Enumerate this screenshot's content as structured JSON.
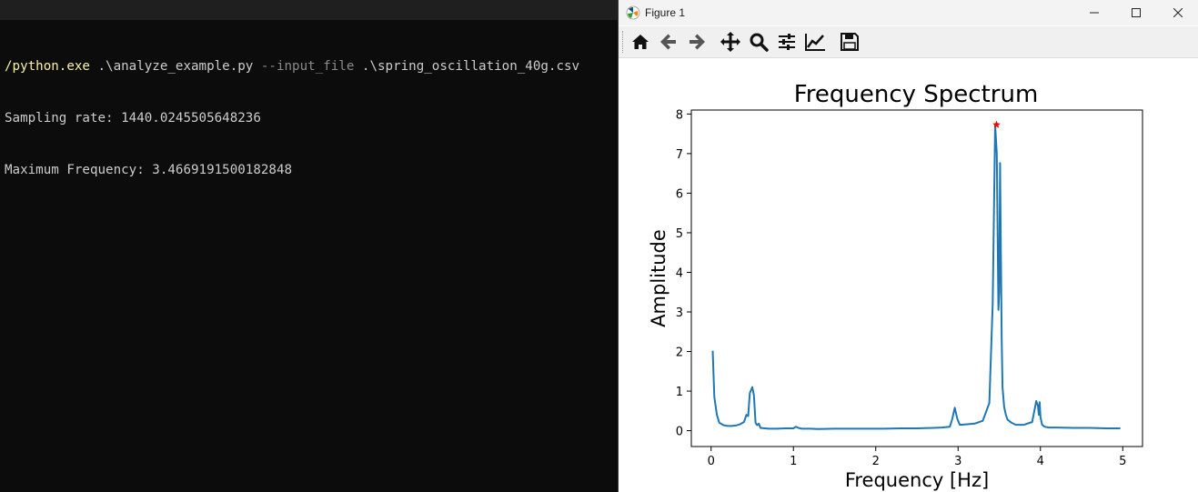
{
  "terminal": {
    "command_exe": "/python.exe",
    "command_script": " .\\analyze_example.py ",
    "command_flag": "--input_file",
    "command_arg": " .\\spring_oscillation_40g.csv",
    "line2": "Sampling rate: 1440.0245505648236",
    "line3": "Maximum Frequency: 3.4669191500182848"
  },
  "window": {
    "title": "Figure 1",
    "icons": [
      "matplotlib-icon",
      "minimize-icon",
      "maximize-icon",
      "close-icon"
    ]
  },
  "toolbar": {
    "icons": [
      "home-icon",
      "back-arrow-icon",
      "forward-arrow-icon",
      "pan-icon",
      "zoom-icon",
      "configure-subplots-icon",
      "edit-axis-icon",
      "save-icon"
    ]
  },
  "chart_data": {
    "type": "line",
    "title": "Frequency Spectrum",
    "xlabel": "Frequency [Hz]",
    "ylabel": "Amplitude",
    "xlim": [
      -0.24,
      5.24
    ],
    "ylim": [
      -0.4,
      8.1
    ],
    "xticks": [
      0,
      1,
      2,
      3,
      4,
      5
    ],
    "yticks": [
      0,
      1,
      2,
      3,
      4,
      5,
      6,
      7,
      8
    ],
    "grid": false,
    "line_color": "#1f77b4",
    "marker_color": "#ff0000",
    "peak": {
      "x": 3.4669191500182848,
      "y": 7.73
    },
    "series": [
      {
        "x": [
          0.02,
          0.04,
          0.07,
          0.1,
          0.15,
          0.2,
          0.25,
          0.3,
          0.35,
          0.4,
          0.43,
          0.45,
          0.47,
          0.5,
          0.52,
          0.54,
          0.56,
          0.58,
          0.6,
          0.65,
          0.7,
          0.8,
          0.9,
          1.0,
          1.03,
          1.06,
          1.1,
          1.2,
          1.3,
          1.5,
          1.7,
          1.9,
          2.1,
          2.3,
          2.5,
          2.7,
          2.8,
          2.9,
          2.93,
          2.96,
          2.99,
          3.02,
          3.1,
          3.2,
          3.3,
          3.38,
          3.42,
          3.45,
          3.47,
          3.49,
          3.5,
          3.51,
          3.52,
          3.53,
          3.54,
          3.56,
          3.58,
          3.6,
          3.65,
          3.7,
          3.8,
          3.9,
          3.95,
          3.97,
          3.98,
          3.99,
          4.0,
          4.02,
          4.05,
          4.1,
          4.2,
          4.4,
          4.6,
          4.8,
          4.97
        ],
        "y": [
          2.02,
          0.85,
          0.4,
          0.2,
          0.14,
          0.12,
          0.12,
          0.13,
          0.16,
          0.22,
          0.4,
          0.37,
          0.95,
          1.1,
          0.9,
          0.2,
          0.14,
          0.18,
          0.07,
          0.06,
          0.05,
          0.05,
          0.06,
          0.06,
          0.1,
          0.07,
          0.05,
          0.05,
          0.04,
          0.05,
          0.05,
          0.05,
          0.05,
          0.06,
          0.06,
          0.07,
          0.08,
          0.1,
          0.3,
          0.58,
          0.3,
          0.15,
          0.16,
          0.18,
          0.25,
          0.7,
          3.2,
          7.73,
          7.0,
          3.05,
          3.5,
          6.76,
          4.5,
          2.3,
          1.1,
          0.6,
          0.4,
          0.28,
          0.2,
          0.15,
          0.15,
          0.22,
          0.75,
          0.62,
          0.4,
          0.72,
          0.35,
          0.15,
          0.1,
          0.08,
          0.08,
          0.07,
          0.07,
          0.06,
          0.06
        ]
      }
    ]
  }
}
